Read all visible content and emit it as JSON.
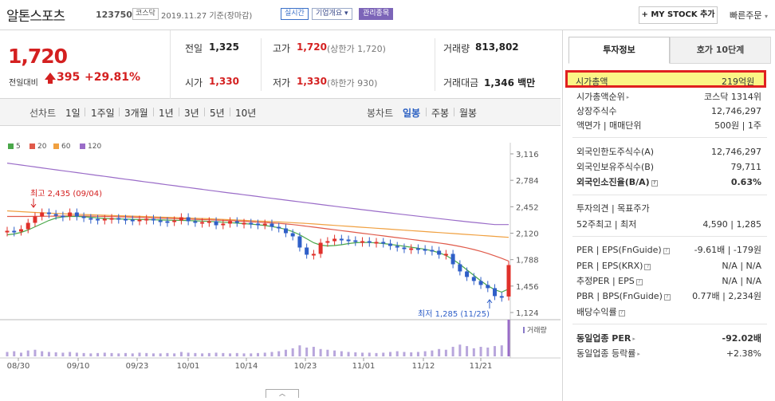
{
  "header": {
    "stock_name": "알톤스포츠",
    "stock_code": "123750",
    "market": "코스닥",
    "date_text": "2019.11.27 기준(장마감)",
    "badge_live": "실시간",
    "badge_info": "기업개요",
    "badge_mgmt": "관리종목",
    "mystock_button": "+ MY STOCK 추가",
    "quick_order": "빠른주문"
  },
  "summary": {
    "price": "1,720",
    "prev_label": "전일대비",
    "change": "395",
    "change_pct": "+29.81%",
    "prev_close_label": "전일",
    "prev_close": "1,325",
    "high_label": "고가",
    "high": "1,720",
    "high_note": "(상한가 1,720)",
    "volume_label": "거래량",
    "volume": "813,802",
    "open_label": "시가",
    "open": "1,330",
    "low_label": "저가",
    "low": "1,330",
    "low_note": "(하한가 930)",
    "amount_label": "거래대금",
    "amount": "1,346 백만"
  },
  "period_tabs": {
    "line_label": "선차트",
    "line_items": [
      "1일",
      "1주일",
      "3개월",
      "1년",
      "3년",
      "5년",
      "10년"
    ],
    "candle_label": "봉차트",
    "candle_items": [
      "일봉",
      "주봉",
      "월봉"
    ],
    "candle_selected": "일봉"
  },
  "chart_data": {
    "type": "candlestick",
    "legend": [
      {
        "name": "5",
        "color": "#4aa84a"
      },
      {
        "name": "20",
        "color": "#e05a4a"
      },
      {
        "name": "60",
        "color": "#f0a040"
      },
      {
        "name": "120",
        "color": "#9a6cc8"
      }
    ],
    "y_ticks": [
      "3,116",
      "2,784",
      "2,452",
      "2,120",
      "1,788",
      "1,456",
      "1,124"
    ],
    "ylim": [
      1124,
      3116
    ],
    "x_ticks": [
      "08/30",
      "09/10",
      "09/23",
      "10/01",
      "10/14",
      "10/23",
      "11/01",
      "11/12",
      "11/21"
    ],
    "high_annotation": "최고 2,435 (09/04)",
    "low_annotation": "최저 1,285 (11/25)",
    "volume_label": "거래량",
    "closes": [
      2150,
      2140,
      2170,
      2250,
      2330,
      2380,
      2360,
      2340,
      2330,
      2380,
      2330,
      2310,
      2300,
      2290,
      2300,
      2310,
      2300,
      2290,
      2270,
      2290,
      2300,
      2280,
      2270,
      2260,
      2280,
      2320,
      2270,
      2250,
      2260,
      2270,
      2220,
      2240,
      2270,
      2250,
      2250,
      2240,
      2230,
      2240,
      2200,
      2180,
      2120,
      2080,
      1940,
      1850,
      1860,
      2000,
      2020,
      2050,
      2040,
      2030,
      2020,
      2020,
      2010,
      2010,
      1990,
      1960,
      1940,
      1930,
      1930,
      1920,
      1910,
      1900,
      1850,
      1860,
      1730,
      1640,
      1570,
      1520,
      1470,
      1430,
      1330,
      1325,
      1720
    ],
    "ma120": [
      3000,
      2988,
      2976,
      2964,
      2952,
      2940,
      2928,
      2916,
      2904,
      2893,
      2881,
      2869,
      2857,
      2845,
      2834,
      2822,
      2810,
      2798,
      2787,
      2775,
      2763,
      2752,
      2740,
      2728,
      2717,
      2705,
      2694,
      2682,
      2671,
      2659,
      2648,
      2636,
      2625,
      2614,
      2602,
      2591,
      2580,
      2568,
      2557,
      2546,
      2535,
      2524,
      2513,
      2502,
      2491,
      2480,
      2469,
      2458,
      2447,
      2437,
      2426,
      2415,
      2405,
      2394,
      2384,
      2374,
      2363,
      2353,
      2343,
      2333,
      2323,
      2313,
      2303,
      2293,
      2283,
      2274,
      2264,
      2255,
      2246,
      2237,
      2228,
      2228,
      2228
    ],
    "ma60": [
      2400,
      2395,
      2390,
      2385,
      2380,
      2376,
      2372,
      2368,
      2364,
      2360,
      2357,
      2354,
      2351,
      2348,
      2345,
      2342,
      2339,
      2336,
      2334,
      2331,
      2328,
      2325,
      2322,
      2319,
      2316,
      2313,
      2310,
      2307,
      2304,
      2301,
      2297,
      2293,
      2289,
      2285,
      2281,
      2277,
      2273,
      2269,
      2265,
      2261,
      2257,
      2252,
      2247,
      2242,
      2236,
      2230,
      2224,
      2218,
      2212,
      2206,
      2200,
      2194,
      2188,
      2182,
      2176,
      2170,
      2164,
      2158,
      2152,
      2146,
      2140,
      2134,
      2128,
      2122,
      2116,
      2110,
      2104,
      2098,
      2092,
      2086,
      2080,
      2074,
      2068
    ],
    "ma20": [
      2330,
      2330,
      2330,
      2330,
      2331,
      2332,
      2333,
      2334,
      2335,
      2336,
      2336,
      2335,
      2334,
      2332,
      2330,
      2328,
      2326,
      2324,
      2321,
      2318,
      2315,
      2312,
      2309,
      2306,
      2303,
      2300,
      2297,
      2294,
      2291,
      2288,
      2285,
      2281,
      2277,
      2273,
      2269,
      2264,
      2259,
      2254,
      2249,
      2243,
      2236,
      2228,
      2218,
      2207,
      2196,
      2185,
      2174,
      2163,
      2152,
      2141,
      2130,
      2119,
      2108,
      2097,
      2086,
      2075,
      2064,
      2053,
      2042,
      2031,
      2020,
      2009,
      1997,
      1985,
      1970,
      1954,
      1936,
      1915,
      1892,
      1866,
      1836,
      1804,
      1770
    ],
    "ma5": [
      2100,
      2110,
      2130,
      2160,
      2200,
      2240,
      2280,
      2310,
      2325,
      2330,
      2330,
      2326,
      2320,
      2312,
      2305,
      2300,
      2298,
      2296,
      2294,
      2292,
      2290,
      2288,
      2286,
      2284,
      2282,
      2280,
      2278,
      2275,
      2272,
      2268,
      2264,
      2258,
      2252,
      2246,
      2240,
      2234,
      2226,
      2216,
      2204,
      2188,
      2168,
      2140,
      2100,
      2050,
      2000,
      1970,
      1960,
      1965,
      1975,
      1990,
      2000,
      2005,
      2003,
      1998,
      1990,
      1980,
      1968,
      1956,
      1944,
      1932,
      1918,
      1900,
      1875,
      1840,
      1790,
      1730,
      1660,
      1590,
      1520,
      1460,
      1410,
      1380,
      1420
    ],
    "volumes": [
      12,
      14,
      10,
      16,
      18,
      14,
      12,
      11,
      10,
      12,
      10,
      9,
      8,
      9,
      10,
      9,
      8,
      9,
      8,
      10,
      9,
      8,
      8,
      9,
      8,
      12,
      10,
      9,
      8,
      9,
      10,
      9,
      8,
      9,
      8,
      8,
      9,
      10,
      12,
      14,
      18,
      22,
      30,
      24,
      26,
      20,
      18,
      16,
      14,
      12,
      11,
      10,
      10,
      9,
      10,
      12,
      14,
      12,
      11,
      12,
      14,
      16,
      20,
      18,
      26,
      32,
      28,
      22,
      26,
      24,
      28,
      30,
      100
    ]
  },
  "right_panel": {
    "tab_invest": "투자정보",
    "tab_hoga": "호가 10단계",
    "market_cap_label": "시가총액",
    "market_cap": "219억원",
    "rows1": [
      {
        "k": "시가총액순위",
        "v": "코스닥 1314위"
      },
      {
        "k": "상장주식수",
        "v": "12,746,297"
      },
      {
        "k": "액면가 | 매매단위",
        "v": "500원 | 1주"
      }
    ],
    "rows2": [
      {
        "k": "외국인한도주식수(A)",
        "v": "12,746,297"
      },
      {
        "k": "외국인보유주식수(B)",
        "v": "79,711"
      },
      {
        "k": "외국인소진율(B/A)",
        "v": "0.63%"
      }
    ],
    "rows3": [
      {
        "k": "투자의견 | 목표주가",
        "v": ""
      },
      {
        "k": "52주최고 | 최저",
        "v": "4,590 | 1,285"
      }
    ],
    "rows4": [
      {
        "k": "PER | EPS(FnGuide)",
        "v": "-9.61배 | -179원"
      },
      {
        "k": "PER | EPS(KRX)",
        "v": "N/A | N/A"
      },
      {
        "k": "추정PER | EPS",
        "v": "N/A | N/A"
      },
      {
        "k": "PBR | BPS(FnGuide)",
        "v": "0.77배 | 2,234원"
      },
      {
        "k": "배당수익률",
        "v": ""
      }
    ],
    "industry_per_label": "동일업종 PER",
    "industry_per": "-92.02배",
    "industry_rate_label": "동일업종 등락률",
    "industry_rate": "+2.38%"
  },
  "collapse_label": "︿"
}
